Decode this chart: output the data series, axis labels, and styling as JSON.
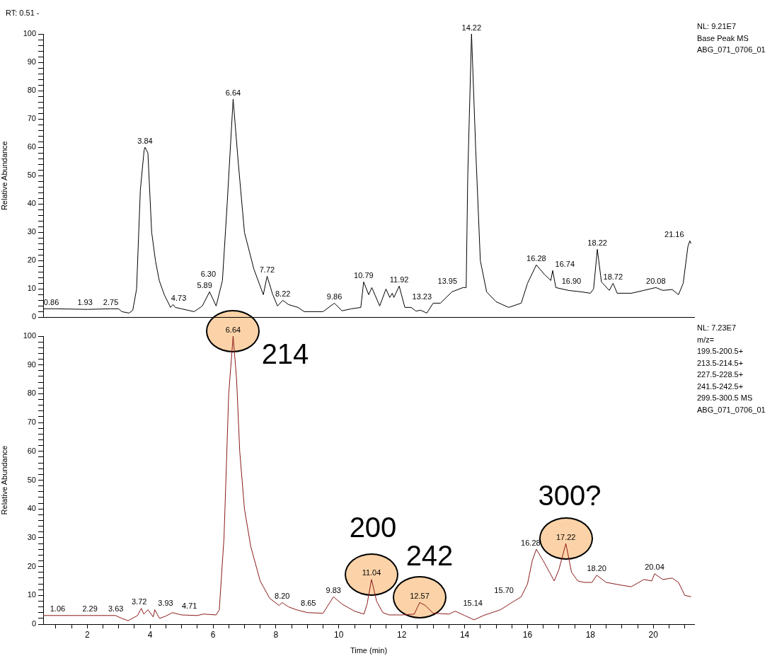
{
  "chart_data": [
    {
      "type": "line",
      "title": "RT: 0.51 -",
      "ylabel": "Relative Abundance",
      "color": "#000000",
      "x": [
        0.6,
        1.0,
        2.0,
        2.75,
        3.0,
        3.1,
        3.33,
        3.45,
        3.57,
        3.69,
        3.81,
        3.84,
        3.93,
        4.05,
        4.17,
        4.29,
        4.45,
        4.65,
        4.73,
        4.8,
        5.0,
        5.4,
        5.66,
        5.89,
        6.1,
        6.3,
        6.45,
        6.64,
        6.8,
        7.0,
        7.3,
        7.6,
        7.72,
        7.9,
        8.05,
        8.22,
        8.4,
        8.7,
        8.9,
        9.5,
        9.86,
        10.1,
        10.4,
        10.7,
        10.79,
        10.95,
        11.05,
        11.3,
        11.5,
        11.62,
        11.7,
        11.75,
        11.92,
        12.1,
        12.3,
        12.45,
        12.6,
        12.8,
        13.0,
        13.23,
        13.6,
        13.95,
        14.05,
        14.1,
        14.22,
        14.35,
        14.5,
        14.7,
        15.0,
        15.4,
        15.8,
        16.0,
        16.28,
        16.55,
        16.74,
        16.8,
        16.9,
        17.3,
        17.7,
        18.0,
        18.1,
        18.22,
        18.35,
        18.6,
        18.72,
        18.85,
        19.3,
        19.7,
        20.08,
        20.3,
        20.6,
        20.8,
        20.95,
        21.1,
        21.16,
        21.2
      ],
      "values": [
        3,
        3,
        2.8,
        3,
        3,
        2,
        1.5,
        2.5,
        10,
        45,
        59,
        60,
        58,
        30,
        20,
        13,
        8,
        3.5,
        4.5,
        3.5,
        3,
        2,
        4,
        9,
        4,
        13,
        40,
        77,
        55,
        30,
        17,
        8,
        14.5,
        8,
        4,
        6,
        4.5,
        3.5,
        2,
        2,
        5,
        2.3,
        3,
        3.5,
        12.5,
        8,
        10.5,
        4,
        10,
        7,
        8.5,
        7,
        11,
        3.5,
        3.5,
        2.2,
        2.5,
        1.5,
        5,
        5,
        9,
        10.5,
        10.5,
        50,
        100,
        60,
        20,
        9,
        5.5,
        3.5,
        5,
        12,
        18.5,
        15,
        13,
        16.5,
        10.5,
        9.5,
        9,
        8.5,
        10,
        24,
        12.5,
        9.5,
        12,
        8.5,
        8.5,
        9.5,
        10.5,
        9.5,
        9.8,
        8,
        12,
        25,
        27,
        26
      ],
      "xlim": [
        0.6,
        21.3
      ],
      "ylim": [
        0,
        100
      ],
      "yticks": [
        0,
        {
          "value": 2,
          "label": null
        },
        {
          "value": 4,
          "label": null
        },
        {
          "value": 6,
          "label": null
        },
        {
          "value": 8,
          "label": null
        },
        10,
        {
          "value": 12,
          "label": null
        },
        {
          "value": 14,
          "label": null
        },
        {
          "value": 16,
          "label": null
        },
        {
          "value": 18,
          "label": null
        },
        20,
        {
          "value": 22,
          "label": null
        },
        {
          "value": 24,
          "label": null
        },
        {
          "value": 26,
          "label": null
        },
        {
          "value": 28,
          "label": null
        },
        30,
        {
          "value": 32,
          "label": null
        },
        {
          "value": 34,
          "label": null
        },
        {
          "value": 36,
          "label": null
        },
        {
          "value": 38,
          "label": null
        },
        40,
        {
          "value": 42,
          "label": null
        },
        {
          "value": 44,
          "label": null
        },
        {
          "value": 46,
          "label": null
        },
        {
          "value": 48,
          "label": null
        },
        50,
        {
          "value": 52,
          "label": null
        },
        {
          "value": 54,
          "label": null
        },
        {
          "value": 56,
          "label": null
        },
        {
          "value": 58,
          "label": null
        },
        60,
        {
          "value": 62,
          "label": null
        },
        {
          "value": 64,
          "label": null
        },
        {
          "value": 66,
          "label": null
        },
        {
          "value": 68,
          "label": null
        },
        70,
        {
          "value": 72,
          "label": null
        },
        {
          "value": 74,
          "label": null
        },
        {
          "value": 76,
          "label": null
        },
        {
          "value": 78,
          "label": null
        },
        80,
        {
          "value": 82,
          "label": null
        },
        {
          "value": 84,
          "label": null
        },
        {
          "value": 86,
          "label": null
        },
        {
          "value": 88,
          "label": null
        },
        90,
        {
          "value": 92,
          "label": null
        },
        {
          "value": 94,
          "label": null
        },
        {
          "value": 96,
          "label": null
        },
        {
          "value": 98,
          "label": null
        },
        100
      ],
      "tick_labels": "y",
      "grid": false,
      "legend": false,
      "marker": "none",
      "annotations": [
        {
          "text": "0.86",
          "x": 0.86,
          "y": 3
        },
        {
          "text": "1.93",
          "x": 1.93,
          "y": 3
        },
        {
          "text": "2.75",
          "x": 2.75,
          "y": 3
        },
        {
          "text": "3.84",
          "x": 3.84,
          "y": 60
        },
        {
          "text": "4.73",
          "x": 4.73,
          "y": 4.5
        },
        {
          "text": "5.89",
          "x": 5.89,
          "y": 9
        },
        {
          "text": "6.30",
          "x": 6.3,
          "y": 13
        },
        {
          "text": "6.64",
          "x": 6.64,
          "y": 77
        },
        {
          "text": "7.72",
          "x": 7.72,
          "y": 14.5
        },
        {
          "text": "8.22",
          "x": 8.22,
          "y": 6
        },
        {
          "text": "9.86",
          "x": 9.86,
          "y": 5
        },
        {
          "text": "10.79",
          "x": 10.79,
          "y": 12.5
        },
        {
          "text": "11.92",
          "x": 11.92,
          "y": 11
        },
        {
          "text": "13.23",
          "x": 13.23,
          "y": 5
        },
        {
          "text": "13.95",
          "x": 13.95,
          "y": 10.5
        },
        {
          "text": "14.22",
          "x": 14.22,
          "y": 100
        },
        {
          "text": "16.28",
          "x": 16.28,
          "y": 18.5
        },
        {
          "text": "16.74",
          "x": 16.74,
          "y": 16.5
        },
        {
          "text": "16.90",
          "x": 16.9,
          "y": 10.5
        },
        {
          "text": "18.22",
          "x": 18.22,
          "y": 24
        },
        {
          "text": "18.72",
          "x": 18.72,
          "y": 12
        },
        {
          "text": "20.08",
          "x": 20.08,
          "y": 10.5
        },
        {
          "text": "21.16",
          "x": 21.16,
          "y": 27
        },
        "NL: 9.21E7",
        "Base Peak  MS",
        "ABG_071_0706_01"
      ]
    },
    {
      "type": "line",
      "xlabel": "Time (min)",
      "ylabel": "Relative Abundance",
      "color": "#8b1a1a",
      "x": [
        0.6,
        2.0,
        2.9,
        3.1,
        3.3,
        3.6,
        3.72,
        3.8,
        3.93,
        4.1,
        4.15,
        4.3,
        4.5,
        4.71,
        5.0,
        5.5,
        5.7,
        6.1,
        6.2,
        6.35,
        6.5,
        6.64,
        6.75,
        6.85,
        7.0,
        7.2,
        7.5,
        7.8,
        8.1,
        8.2,
        8.4,
        8.65,
        9.0,
        9.5,
        9.83,
        10.1,
        10.5,
        10.8,
        10.9,
        11.04,
        11.2,
        11.4,
        11.6,
        12.0,
        12.4,
        12.57,
        12.75,
        13.0,
        13.5,
        13.7,
        14.0,
        14.3,
        14.6,
        15.14,
        15.5,
        15.8,
        16.0,
        16.15,
        16.28,
        16.5,
        16.7,
        16.85,
        17.0,
        17.22,
        17.4,
        17.6,
        17.8,
        18.05,
        18.2,
        18.5,
        19.0,
        19.3,
        19.7,
        19.95,
        20.04,
        20.3,
        20.6,
        20.8,
        21.0,
        21.2
      ],
      "values": [
        3,
        3,
        3,
        2,
        1.2,
        3,
        5.5,
        3.5,
        5,
        2.5,
        5,
        2,
        2.8,
        4,
        3.2,
        3,
        3.5,
        3.2,
        5,
        30,
        80,
        100,
        85,
        60,
        40,
        27,
        15,
        9,
        6.5,
        7.5,
        6,
        5,
        4,
        3.8,
        9.5,
        7,
        4.5,
        3.5,
        7,
        15.5,
        8,
        4,
        3.2,
        3.2,
        3.5,
        7.5,
        6.5,
        3.8,
        3.5,
        4.5,
        3,
        1.5,
        3,
        5,
        7.5,
        9.5,
        14,
        22,
        26,
        22,
        18,
        15,
        19,
        28,
        18,
        15,
        14.5,
        14.5,
        17,
        14.5,
        13.5,
        13,
        15.5,
        15,
        17.5,
        15.5,
        16,
        14.5,
        10,
        9.5
      ],
      "xlim": [
        0.6,
        21.3
      ],
      "ylim": [
        0,
        100
      ],
      "xticks": [
        {
          "value": 1,
          "label": null
        },
        {
          "value": 1.5,
          "label": null
        },
        2,
        {
          "value": 2.5,
          "label": null
        },
        {
          "value": 3,
          "label": null
        },
        {
          "value": 3.5,
          "label": null
        },
        4,
        {
          "value": 4.5,
          "label": null
        },
        {
          "value": 5,
          "label": null
        },
        {
          "value": 5.5,
          "label": null
        },
        6,
        {
          "value": 6.5,
          "label": null
        },
        {
          "value": 7,
          "label": null
        },
        {
          "value": 7.5,
          "label": null
        },
        8,
        {
          "value": 8.5,
          "label": null
        },
        {
          "value": 9,
          "label": null
        },
        {
          "value": 9.5,
          "label": null
        },
        10,
        {
          "value": 10.5,
          "label": null
        },
        {
          "value": 11,
          "label": null
        },
        {
          "value": 11.5,
          "label": null
        },
        12,
        {
          "value": 12.5,
          "label": null
        },
        {
          "value": 13,
          "label": null
        },
        {
          "value": 13.5,
          "label": null
        },
        14,
        {
          "value": 14.5,
          "label": null
        },
        {
          "value": 15,
          "label": null
        },
        {
          "value": 15.5,
          "label": null
        },
        16,
        {
          "value": 16.5,
          "label": null
        },
        {
          "value": 17,
          "label": null
        },
        {
          "value": 17.5,
          "label": null
        },
        18,
        {
          "value": 18.5,
          "label": null
        },
        {
          "value": 19,
          "label": null
        },
        {
          "value": 19.5,
          "label": null
        },
        20,
        {
          "value": 20.5,
          "label": null
        },
        {
          "value": 21,
          "label": null
        }
      ],
      "yticks": [
        0,
        {
          "value": 2,
          "label": null
        },
        {
          "value": 4,
          "label": null
        },
        {
          "value": 6,
          "label": null
        },
        {
          "value": 8,
          "label": null
        },
        10,
        {
          "value": 12,
          "label": null
        },
        {
          "value": 14,
          "label": null
        },
        {
          "value": 16,
          "label": null
        },
        {
          "value": 18,
          "label": null
        },
        20,
        {
          "value": 22,
          "label": null
        },
        {
          "value": 24,
          "label": null
        },
        {
          "value": 26,
          "label": null
        },
        {
          "value": 28,
          "label": null
        },
        30,
        {
          "value": 32,
          "label": null
        },
        {
          "value": 34,
          "label": null
        },
        {
          "value": 36,
          "label": null
        },
        {
          "value": 38,
          "label": null
        },
        40,
        {
          "value": 42,
          "label": null
        },
        {
          "value": 44,
          "label": null
        },
        {
          "value": 46,
          "label": null
        },
        {
          "value": 48,
          "label": null
        },
        50,
        {
          "value": 52,
          "label": null
        },
        {
          "value": 54,
          "label": null
        },
        {
          "value": 56,
          "label": null
        },
        {
          "value": 58,
          "label": null
        },
        60,
        {
          "value": 62,
          "label": null
        },
        {
          "value": 64,
          "label": null
        },
        {
          "value": 66,
          "label": null
        },
        {
          "value": 68,
          "label": null
        },
        70,
        {
          "value": 72,
          "label": null
        },
        {
          "value": 74,
          "label": null
        },
        {
          "value": 76,
          "label": null
        },
        {
          "value": 78,
          "label": null
        },
        80,
        {
          "value": 82,
          "label": null
        },
        {
          "value": 84,
          "label": null
        },
        {
          "value": 86,
          "label": null
        },
        {
          "value": 88,
          "label": null
        },
        90,
        {
          "value": 92,
          "label": null
        },
        {
          "value": 94,
          "label": null
        },
        {
          "value": 96,
          "label": null
        },
        {
          "value": 98,
          "label": null
        },
        100
      ],
      "grid": false,
      "legend": false,
      "marker": "none",
      "annotations": [
        {
          "text": "1.06",
          "x": 1.06,
          "y": 3
        },
        {
          "text": "2.29",
          "x": 2.29,
          "y": 3
        },
        {
          "text": "3.63",
          "x": 3.63,
          "y": 3
        },
        {
          "text": "3.72",
          "x": 3.72,
          "y": 5.5
        },
        {
          "text": "3.93",
          "x": 3.93,
          "y": 5
        },
        {
          "text": "4.71",
          "x": 4.71,
          "y": 4
        },
        {
          "text": "6.64",
          "x": 6.64,
          "y": 100
        },
        {
          "text": "8.20",
          "x": 8.2,
          "y": 7.5
        },
        {
          "text": "8.65",
          "x": 8.65,
          "y": 5
        },
        {
          "text": "9.83",
          "x": 9.83,
          "y": 9.5
        },
        {
          "text": "11.04",
          "x": 11.04,
          "y": 15.5
        },
        {
          "text": "12.57",
          "x": 12.57,
          "y": 7.5
        },
        {
          "text": "15.14",
          "x": 15.14,
          "y": 5
        },
        {
          "text": "15.70",
          "x": 15.7,
          "y": 9.5
        },
        {
          "text": "16.28",
          "x": 16.28,
          "y": 26
        },
        {
          "text": "17.22",
          "x": 17.22,
          "y": 28
        },
        {
          "text": "18.20",
          "x": 18.2,
          "y": 17
        },
        {
          "text": "20.04",
          "x": 20.04,
          "y": 17.5
        },
        "214",
        "200",
        "242",
        "300?",
        "NL: 7.23E7",
        "m/z=",
        "199.5-200.5+",
        "213.5-214.5+",
        "227.5-228.5+",
        "241.5-242.5+",
        "299.5-300.5  MS",
        "ABG_071_0706_01"
      ]
    }
  ]
}
